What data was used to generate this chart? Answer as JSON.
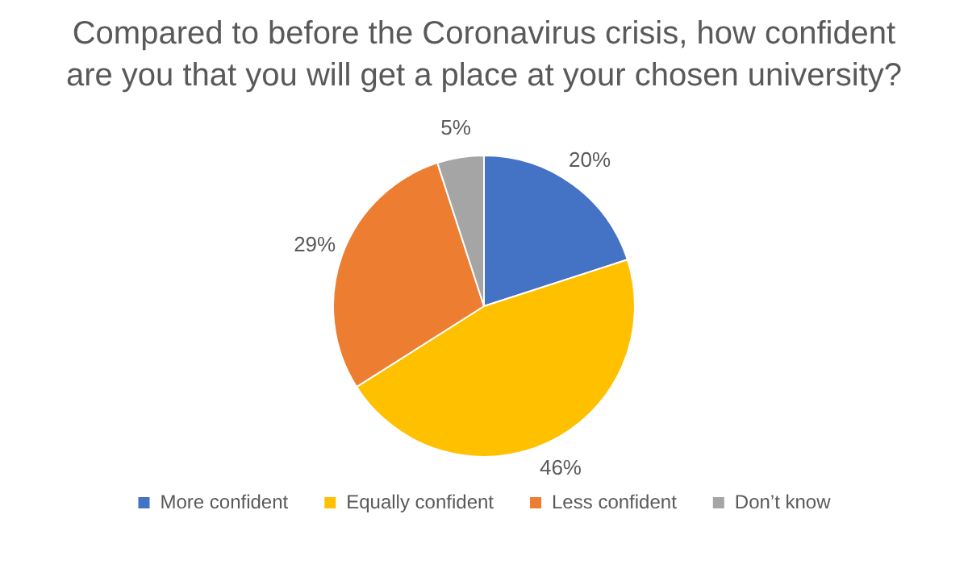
{
  "chart_data": {
    "type": "pie",
    "title": "Compared to before the Coronavirus crisis, how confident are you that you will get a place at your chosen university?",
    "categories": [
      "More confident",
      "Equally confident",
      "Less confident",
      "Don’t know"
    ],
    "values": [
      20,
      46,
      29,
      5
    ],
    "colors": [
      "#4472c4",
      "#ffc000",
      "#ed7d31",
      "#a5a5a5"
    ],
    "value_labels": [
      "20%",
      "46%",
      "29%",
      "5%"
    ],
    "legend": "bottom"
  }
}
